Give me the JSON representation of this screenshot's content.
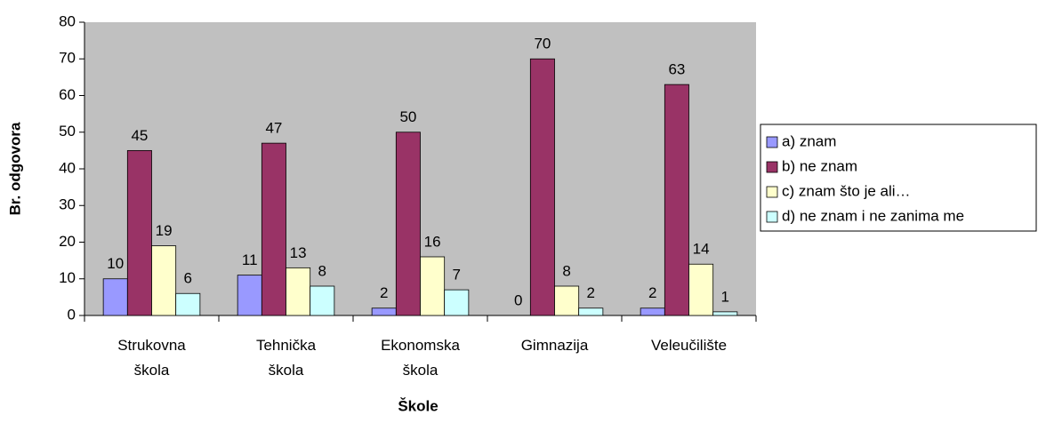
{
  "chart_data": {
    "type": "bar",
    "x_label": "Škole",
    "y_label": "Br. odgovora",
    "categories": [
      "Strukovna škola",
      "Tehnička škola",
      "Ekonomska škola",
      "Gimnazija",
      "Veleučilište"
    ],
    "series": [
      {
        "name": "a) znam",
        "color": "#9999ff",
        "values": [
          10,
          11,
          2,
          0,
          2
        ]
      },
      {
        "name": "b) ne znam",
        "color": "#993366",
        "values": [
          45,
          47,
          50,
          70,
          63
        ]
      },
      {
        "name": "c) znam što je ali…",
        "color": "#ffffcc",
        "values": [
          19,
          13,
          16,
          8,
          14
        ]
      },
      {
        "name": "d) ne znam i ne zanima me",
        "color": "#ccffff",
        "values": [
          6,
          8,
          7,
          2,
          1
        ]
      }
    ],
    "ylim": [
      0,
      80
    ],
    "yticks": [
      0,
      10,
      20,
      30,
      40,
      50,
      60,
      70,
      80
    ],
    "plot_background": "#c0c0c0",
    "legend": "right"
  }
}
